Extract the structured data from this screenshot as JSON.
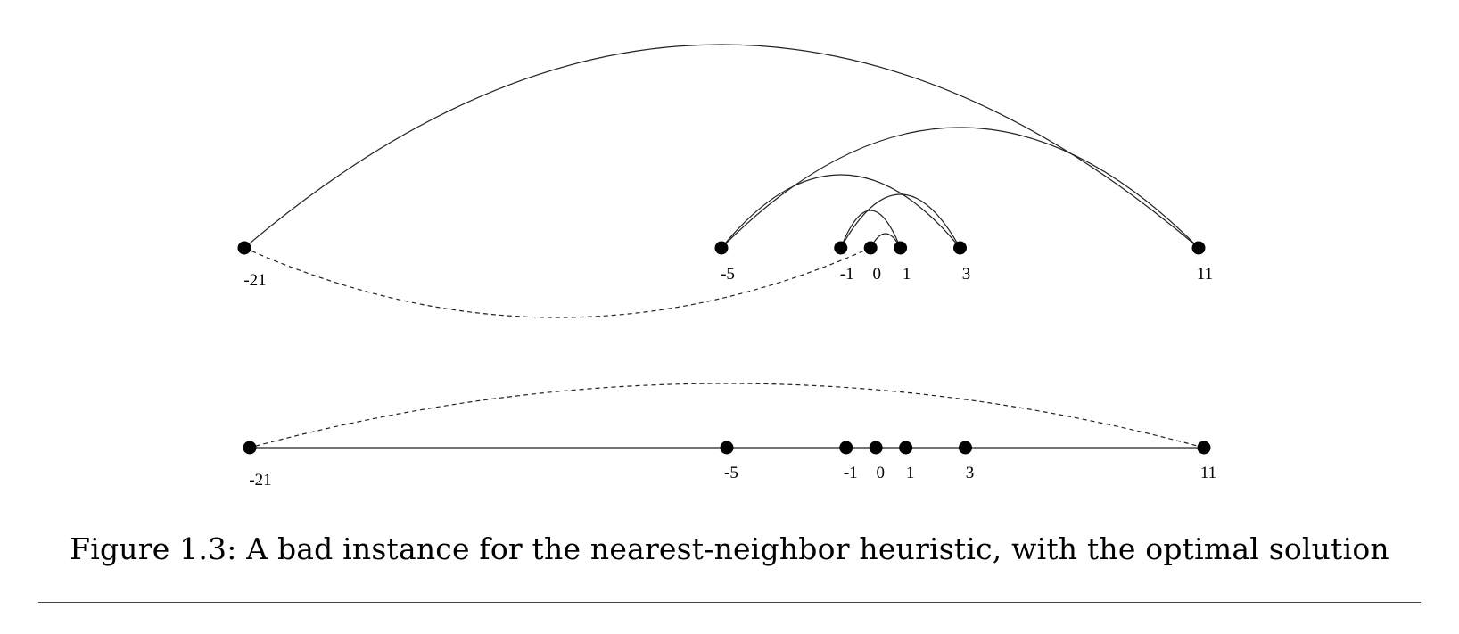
{
  "points": [
    "-21",
    "-5",
    "-1",
    "0",
    "1",
    "3",
    "11"
  ],
  "top_diagram": {
    "tour_order": [
      "0",
      "1",
      "-1",
      "3",
      "-5",
      "11",
      "-21"
    ],
    "solid_edges": [
      [
        "0",
        "1"
      ],
      [
        "1",
        "-1"
      ],
      [
        "-1",
        "3"
      ],
      [
        "3",
        "-5"
      ],
      [
        "-5",
        "11"
      ],
      [
        "11",
        "-21"
      ]
    ],
    "dashed_edges": [
      [
        "-21",
        "0"
      ]
    ]
  },
  "bottom_diagram": {
    "tour_order": [
      "-21",
      "-5",
      "-1",
      "0",
      "1",
      "3",
      "11"
    ],
    "solid_edges": [
      [
        "-21",
        "-5"
      ],
      [
        "-5",
        "-1"
      ],
      [
        "-1",
        "0"
      ],
      [
        "0",
        "1"
      ],
      [
        "1",
        "3"
      ],
      [
        "3",
        "11"
      ]
    ],
    "dashed_edges": [
      [
        "11",
        "-21"
      ]
    ]
  },
  "caption": "Figure 1.3: A bad instance for the nearest-neighbor heuristic, with the optimal solution"
}
